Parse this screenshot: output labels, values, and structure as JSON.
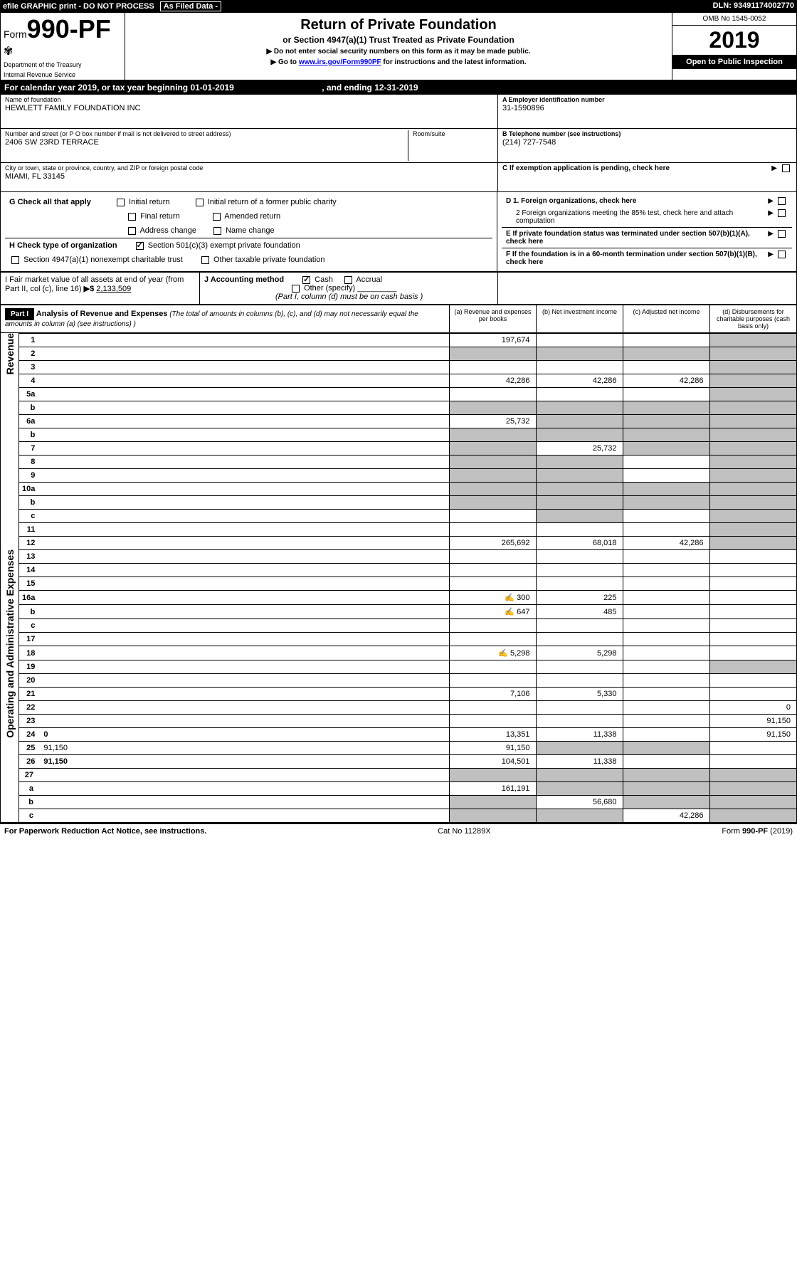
{
  "topbar": {
    "efile": "efile GRAPHIC print - DO NOT PROCESS",
    "asfiled": "As Filed Data -",
    "dln_label": "DLN:",
    "dln": "93491174002770"
  },
  "header": {
    "form_prefix": "Form",
    "form_num": "990-PF",
    "dept1": "Department of the Treasury",
    "dept2": "Internal Revenue Service",
    "title": "Return of Private Foundation",
    "subtitle": "or Section 4947(a)(1) Trust Treated as Private Foundation",
    "note1": "▶ Do not enter social security numbers on this form as it may be made public.",
    "note2_pre": "▶ Go to ",
    "note2_link": "www.irs.gov/Form990PF",
    "note2_post": " for instructions and the latest information.",
    "omb": "OMB No 1545-0052",
    "year": "2019",
    "open": "Open to Public Inspection"
  },
  "calendar": {
    "text_a": "For calendar year 2019, or tax year beginning ",
    "begin": "01-01-2019",
    "text_b": ", and ending ",
    "end": "12-31-2019"
  },
  "foundation": {
    "name_label": "Name of foundation",
    "name": "HEWLETT FAMILY FOUNDATION INC",
    "addr_label": "Number and street (or P O  box number if mail is not delivered to street address)",
    "addr": "2406 SW 23RD TERRACE",
    "room_label": "Room/suite",
    "city_label": "City or town, state or province, country, and ZIP or foreign postal code",
    "city": "MIAMI, FL  33145"
  },
  "right_info": {
    "a_label": "A Employer identification number",
    "a_val": "31-1590896",
    "b_label": "B Telephone number (see instructions)",
    "b_val": "(214) 727-7548",
    "c_label": "C If exemption application is pending, check here",
    "d1": "D 1. Foreign organizations, check here",
    "d2": "2 Foreign organizations meeting the 85% test, check here and attach computation",
    "e": "E  If private foundation status was terminated under section 507(b)(1)(A), check here",
    "f": "F  If the foundation is in a 60-month termination under section 507(b)(1)(B), check here"
  },
  "g": {
    "label": "G Check all that apply",
    "opts": [
      "Initial return",
      "Initial return of a former public charity",
      "Final return",
      "Amended return",
      "Address change",
      "Name change"
    ]
  },
  "h": {
    "label": "H Check type of organization",
    "opt1": "Section 501(c)(3) exempt private foundation",
    "opt2": "Section 4947(a)(1) nonexempt charitable trust",
    "opt3": "Other taxable private foundation"
  },
  "i": {
    "label": "I Fair market value of all assets at end of year (from Part II, col  (c), line 16)",
    "arrow": "▶$",
    "val": "2,133,509"
  },
  "j": {
    "label": "J Accounting method",
    "cash": "Cash",
    "accrual": "Accrual",
    "other": "Other (specify)",
    "note": "(Part I, column (d) must be on cash basis )"
  },
  "part1": {
    "label": "Part I",
    "title": "Analysis of Revenue and Expenses",
    "desc": "(The total of amounts in columns (b), (c), and (d) may not necessarily equal the amounts in column (a) (see instructions) )",
    "col_a": "(a) Revenue and expenses per books",
    "col_b": "(b) Net investment income",
    "col_c": "(c) Adjusted net income",
    "col_d": "(d) Disbursements for charitable purposes (cash basis only)"
  },
  "revenue_label": "Revenue",
  "expenses_label": "Operating and Administrative Expenses",
  "rows": [
    {
      "n": "1",
      "d": "",
      "a": "197,674",
      "b": "",
      "c": "",
      "dg": true
    },
    {
      "n": "2",
      "d": "",
      "a": "",
      "b": "",
      "c": "",
      "dg": true,
      "ag": true,
      "bg": true,
      "cg": true
    },
    {
      "n": "3",
      "d": "",
      "a": "",
      "b": "",
      "c": "",
      "dg": true
    },
    {
      "n": "4",
      "d": "",
      "a": "42,286",
      "b": "42,286",
      "c": "42,286",
      "dg": true
    },
    {
      "n": "5a",
      "d": "",
      "a": "",
      "b": "",
      "c": "",
      "dg": true
    },
    {
      "n": "b",
      "d": "",
      "a": "",
      "b": "",
      "c": "",
      "dg": true,
      "ag": true,
      "bg": true,
      "cg": true
    },
    {
      "n": "6a",
      "d": "",
      "a": "25,732",
      "b": "",
      "c": "",
      "dg": true,
      "bg": true,
      "cg": true
    },
    {
      "n": "b",
      "d": "",
      "a": "",
      "b": "",
      "c": "",
      "dg": true,
      "ag": true,
      "bg": true,
      "cg": true
    },
    {
      "n": "7",
      "d": "",
      "a": "",
      "b": "25,732",
      "c": "",
      "dg": true,
      "ag": true,
      "cg": true
    },
    {
      "n": "8",
      "d": "",
      "a": "",
      "b": "",
      "c": "",
      "dg": true,
      "ag": true,
      "bg": true
    },
    {
      "n": "9",
      "d": "",
      "a": "",
      "b": "",
      "c": "",
      "dg": true,
      "ag": true,
      "bg": true
    },
    {
      "n": "10a",
      "d": "",
      "a": "",
      "b": "",
      "c": "",
      "dg": true,
      "ag": true,
      "bg": true,
      "cg": true
    },
    {
      "n": "b",
      "d": "",
      "a": "",
      "b": "",
      "c": "",
      "dg": true,
      "ag": true,
      "bg": true,
      "cg": true
    },
    {
      "n": "c",
      "d": "",
      "a": "",
      "b": "",
      "c": "",
      "dg": true,
      "bg": true
    },
    {
      "n": "11",
      "d": "",
      "a": "",
      "b": "",
      "c": "",
      "dg": true
    },
    {
      "n": "12",
      "d": "",
      "a": "265,692",
      "b": "68,018",
      "c": "42,286",
      "dg": true,
      "bold": true
    }
  ],
  "exp_rows": [
    {
      "n": "13",
      "d": "",
      "a": "",
      "b": "",
      "c": ""
    },
    {
      "n": "14",
      "d": "",
      "a": "",
      "b": "",
      "c": ""
    },
    {
      "n": "15",
      "d": "",
      "a": "",
      "b": "",
      "c": ""
    },
    {
      "n": "16a",
      "d": "",
      "a": "300",
      "b": "225",
      "c": "",
      "icon": true
    },
    {
      "n": "b",
      "d": "",
      "a": "647",
      "b": "485",
      "c": "",
      "icon": true
    },
    {
      "n": "c",
      "d": "",
      "a": "",
      "b": "",
      "c": ""
    },
    {
      "n": "17",
      "d": "",
      "a": "",
      "b": "",
      "c": ""
    },
    {
      "n": "18",
      "d": "",
      "a": "5,298",
      "b": "5,298",
      "c": "",
      "icon": true
    },
    {
      "n": "19",
      "d": "",
      "a": "",
      "b": "",
      "c": "",
      "dg": true
    },
    {
      "n": "20",
      "d": "",
      "a": "",
      "b": "",
      "c": ""
    },
    {
      "n": "21",
      "d": "",
      "a": "7,106",
      "b": "5,330",
      "c": ""
    },
    {
      "n": "22",
      "d": "",
      "a": "",
      "b": "",
      "c": ""
    },
    {
      "n": "23",
      "d": "",
      "a": "",
      "b": "",
      "c": ""
    },
    {
      "n": "24",
      "d": "0",
      "a": "13,351",
      "b": "11,338",
      "c": "",
      "bold": true
    },
    {
      "n": "25",
      "d": "91,150",
      "a": "91,150",
      "b": "",
      "c": "",
      "bg": true,
      "cg": true
    },
    {
      "n": "26",
      "d": "91,150",
      "a": "104,501",
      "b": "11,338",
      "c": "",
      "bold": true
    }
  ],
  "bottom_rows": [
    {
      "n": "27",
      "d": "",
      "a": "",
      "b": "",
      "c": "",
      "ag": true,
      "bg": true,
      "cg": true,
      "dg": true
    },
    {
      "n": "a",
      "d": "",
      "a": "161,191",
      "b": "",
      "c": "",
      "bold": true,
      "bg": true,
      "cg": true,
      "dg": true
    },
    {
      "n": "b",
      "d": "",
      "a": "",
      "b": "56,680",
      "c": "",
      "bold": true,
      "ag": true,
      "cg": true,
      "dg": true
    },
    {
      "n": "c",
      "d": "",
      "a": "",
      "b": "",
      "c": "42,286",
      "bold": true,
      "ag": true,
      "bg": true,
      "dg": true
    }
  ],
  "footer": {
    "left": "For Paperwork Reduction Act Notice, see instructions.",
    "mid": "Cat  No  11289X",
    "right": "Form 990-PF (2019)"
  }
}
